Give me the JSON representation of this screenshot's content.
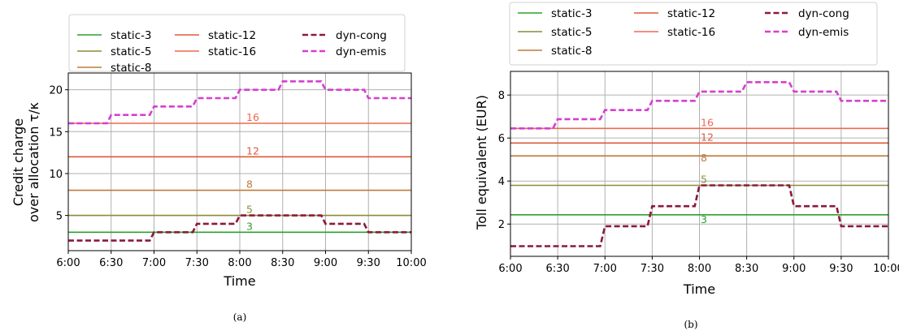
{
  "chart_data": [
    {
      "type": "line",
      "caption": "(a)",
      "xlabel": "Time",
      "ylabel": [
        "Credit charge",
        "over allocation τ/κ"
      ],
      "x_ticks": [
        "6:00",
        "6:30",
        "7:00",
        "7:30",
        "8:00",
        "8:30",
        "9:00",
        "9:30",
        "10:00"
      ],
      "x_range": [
        0,
        8
      ],
      "ylim": [
        0.8,
        22
      ],
      "y_ticks": [
        5,
        10,
        15,
        20
      ],
      "grid": true,
      "legend_position": "top",
      "series": [
        {
          "name": "static-3",
          "color": "#2ca02c",
          "style": "solid",
          "annotation": "3",
          "points": [
            [
              0,
              3
            ],
            [
              8,
              3
            ]
          ]
        },
        {
          "name": "static-5",
          "color": "#8c8c3a",
          "style": "solid",
          "annotation": "5",
          "points": [
            [
              0,
              5
            ],
            [
              8,
              5
            ]
          ]
        },
        {
          "name": "static-8",
          "color": "#bf7a3d",
          "style": "solid",
          "annotation": "8",
          "points": [
            [
              0,
              8
            ],
            [
              8,
              8
            ]
          ]
        },
        {
          "name": "static-12",
          "color": "#dd5a3c",
          "style": "solid",
          "annotation": "12",
          "points": [
            [
              0,
              12
            ],
            [
              8,
              12
            ]
          ]
        },
        {
          "name": "static-16",
          "color": "#ec6a4f",
          "style": "solid",
          "annotation": "16",
          "points": [
            [
              0,
              16
            ],
            [
              8,
              16
            ]
          ]
        },
        {
          "name": "dyn-cong",
          "color": "#8b1a3a",
          "style": "dashed",
          "annotation": "",
          "points": [
            [
              0,
              2
            ],
            [
              1.9,
              2
            ],
            [
              2,
              3
            ],
            [
              2.9,
              3
            ],
            [
              3,
              4
            ],
            [
              3.9,
              4
            ],
            [
              4,
              5
            ],
            [
              5.9,
              5
            ],
            [
              6,
              4
            ],
            [
              6.9,
              4
            ],
            [
              7,
              3
            ],
            [
              8,
              3
            ]
          ]
        },
        {
          "name": "dyn-emis",
          "color": "#d63fd0",
          "style": "dashed",
          "annotation": "",
          "points": [
            [
              0,
              16
            ],
            [
              0.9,
              16
            ],
            [
              1,
              17
            ],
            [
              1.9,
              17
            ],
            [
              2,
              18
            ],
            [
              2.9,
              18
            ],
            [
              3,
              19
            ],
            [
              3.9,
              19
            ],
            [
              4,
              20
            ],
            [
              4.9,
              20
            ],
            [
              5,
              21
            ],
            [
              5.9,
              21
            ],
            [
              6,
              20
            ],
            [
              6.9,
              20
            ],
            [
              7,
              19
            ],
            [
              8,
              19
            ]
          ]
        }
      ]
    },
    {
      "type": "line",
      "caption": "(b)",
      "xlabel": "Time",
      "ylabel": [
        "Toll equivalent (EUR)"
      ],
      "x_ticks": [
        "6:00",
        "6:30",
        "7:00",
        "7:30",
        "8:00",
        "8:30",
        "9:00",
        "9:30",
        "10:00"
      ],
      "x_range": [
        0,
        8
      ],
      "ylim": [
        0.5,
        9.1
      ],
      "y_ticks": [
        2,
        4,
        6,
        8
      ],
      "grid": true,
      "legend_position": "top",
      "series": [
        {
          "name": "static-3",
          "color": "#2ca02c",
          "style": "solid",
          "annotation": "3",
          "points": [
            [
              0,
              2.43
            ],
            [
              8,
              2.43
            ]
          ]
        },
        {
          "name": "static-5",
          "color": "#8c8c3a",
          "style": "solid",
          "annotation": "5",
          "points": [
            [
              0,
              3.8
            ],
            [
              8,
              3.8
            ]
          ]
        },
        {
          "name": "static-8",
          "color": "#bf7a3d",
          "style": "solid",
          "annotation": "8",
          "points": [
            [
              0,
              5.17
            ],
            [
              8,
              5.17
            ]
          ]
        },
        {
          "name": "static-12",
          "color": "#dd5a3c",
          "style": "solid",
          "annotation": "12",
          "points": [
            [
              0,
              5.77
            ],
            [
              8,
              5.77
            ]
          ]
        },
        {
          "name": "static-16",
          "color": "#ec6a4f",
          "style": "solid",
          "annotation": "16",
          "points": [
            [
              0,
              6.45
            ],
            [
              8,
              6.45
            ]
          ]
        },
        {
          "name": "dyn-cong",
          "color": "#8b1a3a",
          "style": "dashed",
          "annotation": "",
          "points": [
            [
              0,
              0.97
            ],
            [
              1.9,
              0.97
            ],
            [
              2,
              1.9
            ],
            [
              2.9,
              1.9
            ],
            [
              3,
              2.83
            ],
            [
              3.9,
              2.83
            ],
            [
              4,
              3.8
            ],
            [
              5.9,
              3.8
            ],
            [
              6,
              2.83
            ],
            [
              6.9,
              2.83
            ],
            [
              7,
              1.9
            ],
            [
              8,
              1.9
            ]
          ]
        },
        {
          "name": "dyn-emis",
          "color": "#d63fd0",
          "style": "dashed",
          "annotation": "",
          "points": [
            [
              0,
              6.45
            ],
            [
              0.9,
              6.45
            ],
            [
              1,
              6.88
            ],
            [
              1.9,
              6.88
            ],
            [
              2,
              7.3
            ],
            [
              2.9,
              7.3
            ],
            [
              3,
              7.73
            ],
            [
              3.9,
              7.73
            ],
            [
              4,
              8.16
            ],
            [
              4.9,
              8.16
            ],
            [
              5,
              8.6
            ],
            [
              5.9,
              8.6
            ],
            [
              6,
              8.16
            ],
            [
              6.9,
              8.16
            ],
            [
              7,
              7.73
            ],
            [
              8,
              7.73
            ]
          ]
        }
      ]
    }
  ]
}
